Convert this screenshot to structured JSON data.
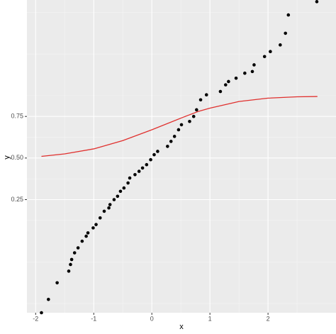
{
  "chart_data": {
    "type": "scatter",
    "xlabel": "x",
    "ylabel": "y",
    "xlim": [
      -2.15,
      3.17
    ],
    "ylim": [
      -0.43,
      1.45
    ],
    "xticks": [
      -2,
      -1,
      0,
      1,
      2
    ],
    "yticks": [
      0.25,
      {
        "value": 0.5,
        "label": "0.50"
      },
      0.75
    ],
    "grid": true,
    "series": [
      {
        "type": "scatter",
        "color": "#000000",
        "x": [
          -1.9,
          -1.78,
          -1.63,
          -1.43,
          -1.4,
          -1.38,
          -1.33,
          -1.27,
          -1.2,
          -1.13,
          -1.1,
          -1.01,
          -0.96,
          -0.89,
          -0.82,
          -0.74,
          -0.72,
          -0.65,
          -0.59,
          -0.54,
          -0.48,
          -0.41,
          -0.38,
          -0.29,
          -0.22,
          -0.16,
          -0.09,
          -0.02,
          0.04,
          0.1,
          0.27,
          0.33,
          0.39,
          0.46,
          0.51,
          0.65,
          0.72,
          0.77,
          0.84,
          0.94,
          1.18,
          1.27,
          1.32,
          1.45,
          1.6,
          1.73,
          1.76,
          1.94,
          2.04,
          2.21,
          2.3,
          2.35,
          2.84
        ],
        "values": [
          -0.43,
          -0.35,
          -0.25,
          -0.18,
          -0.14,
          -0.11,
          -0.07,
          -0.04,
          0.0,
          0.03,
          0.05,
          0.08,
          0.1,
          0.14,
          0.18,
          0.2,
          0.22,
          0.25,
          0.27,
          0.3,
          0.32,
          0.35,
          0.38,
          0.4,
          0.42,
          0.44,
          0.46,
          0.49,
          0.52,
          0.54,
          0.57,
          0.6,
          0.63,
          0.67,
          0.7,
          0.72,
          0.75,
          0.79,
          0.85,
          0.88,
          0.9,
          0.94,
          0.96,
          0.98,
          1.01,
          1.02,
          1.06,
          1.11,
          1.14,
          1.18,
          1.25,
          1.36,
          1.44
        ]
      },
      {
        "type": "line",
        "color": "#e0302e",
        "x": [
          -1.9,
          -1.5,
          -1,
          -0.5,
          0,
          0.5,
          0.8,
          1,
          1.5,
          2,
          2.5,
          2.85
        ],
        "values": [
          0.51,
          0.525,
          0.555,
          0.605,
          0.67,
          0.74,
          0.78,
          0.8,
          0.84,
          0.86,
          0.868,
          0.87
        ]
      }
    ]
  }
}
